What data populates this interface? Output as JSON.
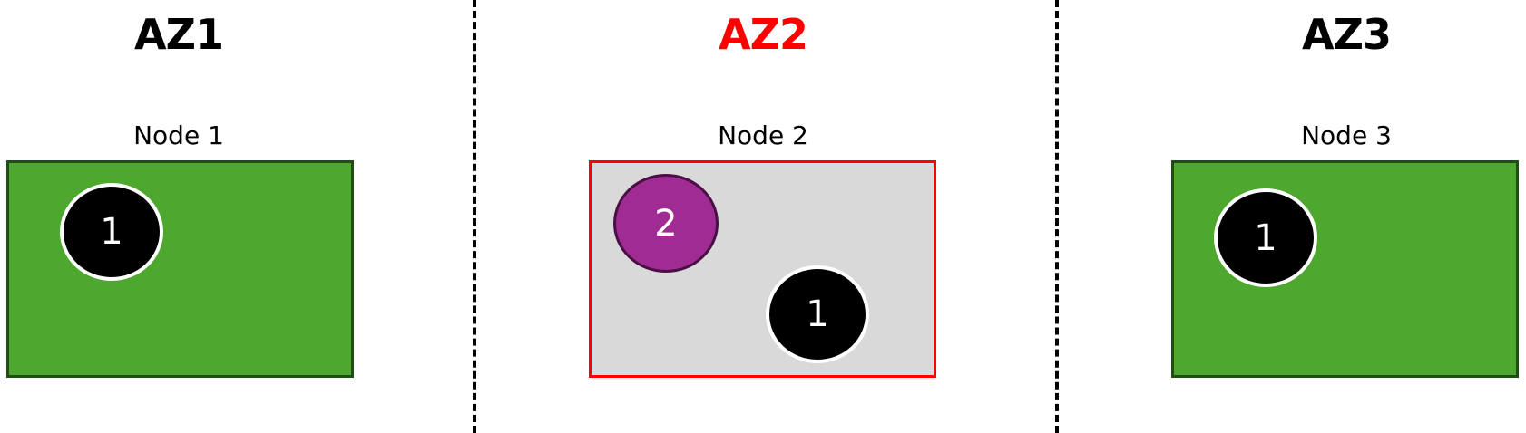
{
  "colors": {
    "node_healthy_fill": "#4ea72e",
    "node_healthy_border": "#1f4d14",
    "node_failed_fill": "#d9d9d9",
    "node_failed_border": "#ff0000",
    "pod_black_fill": "#000000",
    "pod_black_border": "#ffffff",
    "pod_purple_fill": "#a02b93",
    "pod_purple_border": "#4a0f44",
    "az_title_normal": "#000000",
    "az_title_highlight": "#ff0000"
  },
  "zones": [
    {
      "title": "AZ1",
      "node": {
        "label": "Node 1",
        "pods": [
          {
            "label": "1"
          }
        ]
      }
    },
    {
      "title": "AZ2",
      "node": {
        "label": "Node 2",
        "pods": [
          {
            "label": "2"
          },
          {
            "label": "1"
          }
        ]
      }
    },
    {
      "title": "AZ3",
      "node": {
        "label": "Node 3",
        "pods": [
          {
            "label": "1"
          }
        ]
      }
    }
  ]
}
